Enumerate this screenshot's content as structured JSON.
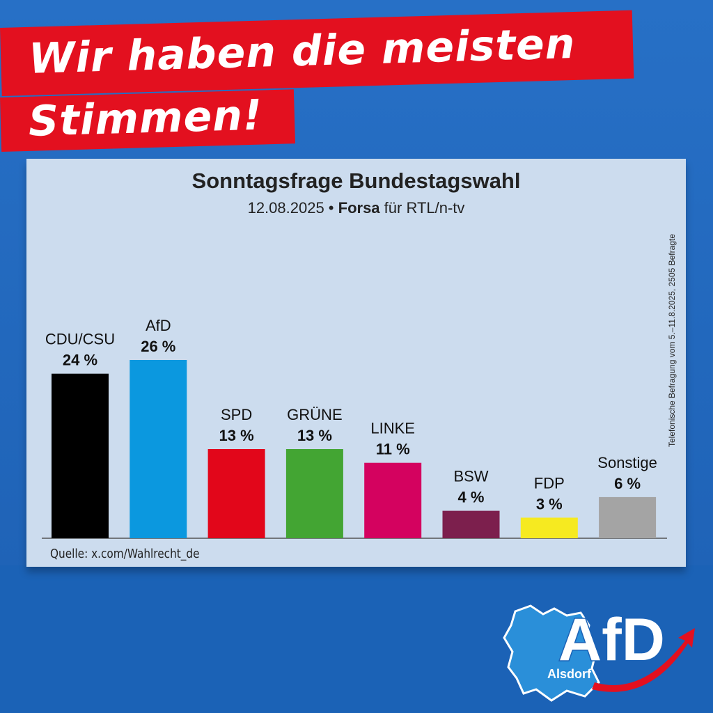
{
  "banner": {
    "line1": "Wir haben die meisten",
    "line2": "Stimmen!"
  },
  "colors": {
    "background": "#1e64b8",
    "banner_red": "#e3101f",
    "panel": "#ccdcee"
  },
  "chart_data": {
    "type": "bar",
    "title": "Sonntagsfrage Bundestagswahl",
    "subtitle_date": "12.08.2025 •",
    "subtitle_pollster": "Forsa",
    "subtitle_rest": "für RTL/n-tv",
    "side_note": "Telefonische Befragung vom 5.–11.8.2025, 2505 Befragte",
    "source": "Quelle: x.com/Wahlrecht_de",
    "unit": "%",
    "categories": [
      "CDU/CSU",
      "AfD",
      "SPD",
      "GRÜNE",
      "LINKE",
      "BSW",
      "FDP",
      "Sonstige"
    ],
    "values": [
      24,
      26,
      13,
      13,
      11,
      4,
      3,
      6
    ],
    "value_labels": [
      "24 %",
      "26 %",
      "13 %",
      "13 %",
      "11 %",
      "4 %",
      "3 %",
      "6 %"
    ],
    "colors": [
      "#000000",
      "#0b98df",
      "#e2061a",
      "#43a533",
      "#d4025f",
      "#7c1f4d",
      "#f6ea20",
      "#a4a4a4"
    ],
    "ylim": [
      0,
      26
    ],
    "grid": false,
    "legend": "none"
  },
  "logo": {
    "brand": "AfD",
    "location": "Alsdorf"
  }
}
